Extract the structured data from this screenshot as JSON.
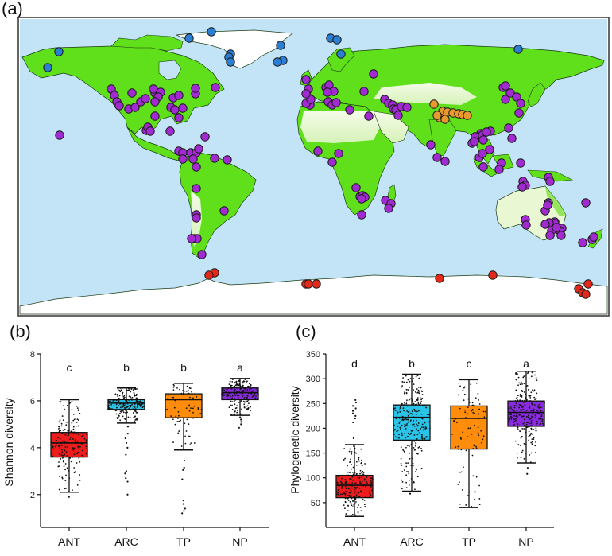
{
  "panels": {
    "a": "(a)",
    "b": "(b)",
    "c": "(c)"
  },
  "map": {
    "ocean_color": "#c3e3f7",
    "land_color": "#5fe01a",
    "dry_land_color": "#eef8dc",
    "ice_color": "#ffffff",
    "group_colors": {
      "ARC": "#2a7fd4",
      "TP": "#e89a2c",
      "NP": "#a12bd0",
      "ANT": "#e32a1a"
    }
  },
  "chart_data": [
    {
      "type": "box",
      "panel": "(b)",
      "title": "",
      "xlabel": "",
      "ylabel": "Shannon diversity",
      "categories": [
        "ANT",
        "ARC",
        "TP",
        "NP"
      ],
      "ylim": [
        0.6,
        8
      ],
      "yticks": [
        2,
        4,
        6,
        8
      ],
      "colors": [
        "#ee1c1c",
        "#29c4e8",
        "#ff8c0a",
        "#8a2be2"
      ],
      "significance_letters": [
        "c",
        "b",
        "b",
        "a"
      ],
      "series": [
        {
          "name": "ANT",
          "whisker_low": 2.1,
          "q1": 3.6,
          "median": 4.2,
          "q3": 4.65,
          "whisker_high": 6.05,
          "outliers": [
            1.9
          ]
        },
        {
          "name": "ARC",
          "whisker_low": 5.05,
          "q1": 5.63,
          "median": 5.9,
          "q3": 6.05,
          "whisker_high": 6.55,
          "outliers": [
            4.9,
            4.6,
            4.4,
            4.2,
            4.0,
            3.7,
            3.0,
            2.9,
            2.7,
            2.55,
            2.0
          ]
        },
        {
          "name": "TP",
          "whisker_low": 3.9,
          "q1": 5.28,
          "median": 6.05,
          "q3": 6.3,
          "whisker_high": 6.75,
          "outliers": [
            3.45,
            3.15,
            3.05,
            2.65,
            1.75,
            1.6,
            1.4,
            1.3,
            1.2
          ]
        },
        {
          "name": "NP",
          "whisker_low": 5.38,
          "q1": 6.05,
          "median": 6.35,
          "q3": 6.55,
          "whisker_high": 6.95,
          "outliers": [
            5.3,
            5.2,
            5.1,
            5.0,
            4.85
          ]
        }
      ]
    },
    {
      "type": "box",
      "panel": "(c)",
      "title": "",
      "xlabel": "",
      "ylabel": "Phylogenetic diversity",
      "categories": [
        "ANT",
        "ARC",
        "TP",
        "NP"
      ],
      "ylim": [
        0,
        350
      ],
      "yticks": [
        50,
        100,
        150,
        200,
        250,
        300,
        350
      ],
      "colors": [
        "#ee1c1c",
        "#29c4e8",
        "#ff8c0a",
        "#8a2be2"
      ],
      "significance_letters": [
        "d",
        "b",
        "c",
        "a"
      ],
      "series": [
        {
          "name": "ANT",
          "whisker_low": 22,
          "q1": 60,
          "median": 85,
          "q3": 105,
          "whisker_high": 167,
          "outliers": [
            180,
            212,
            220,
            225,
            230,
            235,
            240,
            245,
            252,
            257
          ]
        },
        {
          "name": "ARC",
          "whisker_low": 73,
          "q1": 176,
          "median": 222,
          "q3": 247,
          "whisker_high": 309,
          "outliers": [
            68
          ]
        },
        {
          "name": "TP",
          "whisker_low": 40,
          "q1": 158,
          "median": 220,
          "q3": 245,
          "whisker_high": 298,
          "outliers": []
        },
        {
          "name": "NP",
          "whisker_low": 130,
          "q1": 204,
          "median": 232,
          "q3": 255,
          "whisker_high": 315,
          "outliers": [
            120,
            108
          ]
        }
      ]
    }
  ]
}
